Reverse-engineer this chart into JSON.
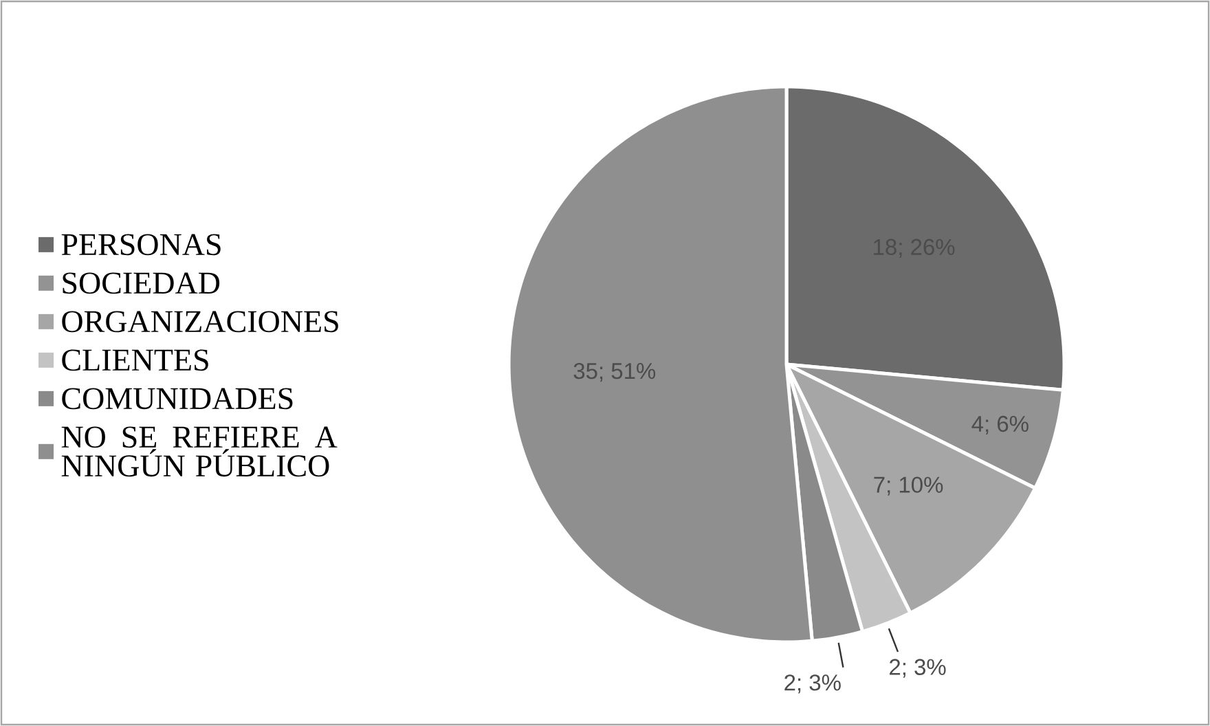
{
  "chart_data": {
    "type": "pie",
    "categories": [
      "PERSONAS",
      "SOCIEDAD",
      "ORGANIZACIONES",
      "CLIENTES",
      "COMUNIDADES",
      "NO SE REFIERE A NINGÚN PÚBLICO"
    ],
    "values": [
      18,
      4,
      7,
      2,
      2,
      35
    ],
    "colors": [
      "#6b6b6b",
      "#939393",
      "#a6a6a6",
      "#c3c3c3",
      "#8a8a8a",
      "#8f8f8f"
    ],
    "value_labels": [
      "18; 26%",
      "4; 6%",
      "7; 10%",
      "2; 3%",
      "2; 3%",
      "35; 51%"
    ],
    "legend": "left"
  }
}
